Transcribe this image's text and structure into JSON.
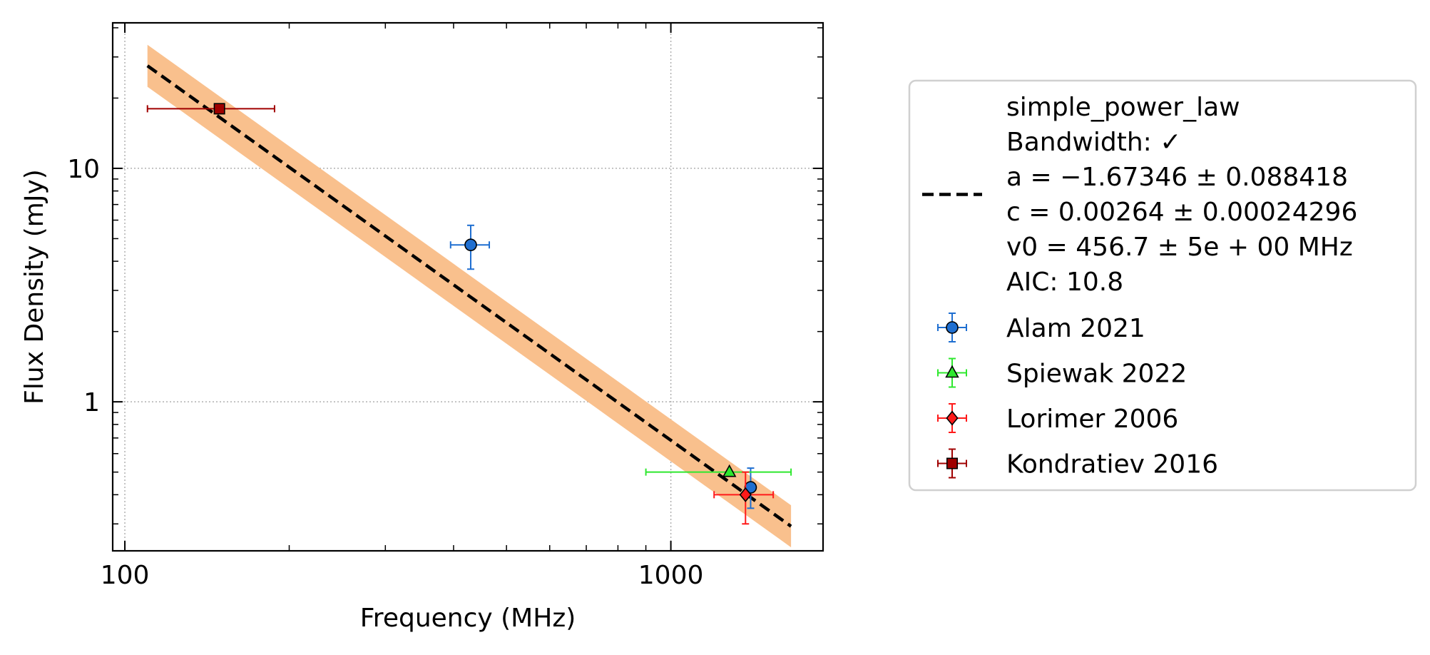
{
  "chart_data": {
    "type": "scatter",
    "title": "",
    "xlabel": "Frequency (MHz)",
    "ylabel": "Flux Density (mJy)",
    "xscale": "log",
    "yscale": "log",
    "xlim": [
      95,
      1900
    ],
    "ylim": [
      0.23,
      42
    ],
    "x_ticks": [
      {
        "value": 100,
        "label": "100"
      },
      {
        "value": 1000,
        "label": "1000"
      }
    ],
    "y_ticks": [
      {
        "value": 1,
        "label": "1"
      },
      {
        "value": 10,
        "label": "10"
      }
    ],
    "grid": true,
    "legend_placement": "outside-right",
    "fit": {
      "model": "simple_power_law",
      "legend_lines": [
        "simple_power_law",
        "Bandwidth: ✓",
        "a = −1.67346 ± 0.088418",
        "c = 0.00264 ± 0.00024296",
        "v0 = 456.7 ± 5e + 00 MHz",
        "AIC: 10.8"
      ],
      "a": -1.67346,
      "a_err": 0.088418,
      "v0": 456.7,
      "x_range": [
        110,
        1660
      ],
      "anchor": {
        "x": 110,
        "y": 27.5
      },
      "band_log_halfwidth": 0.09,
      "line_color": "#000000",
      "band_color": "#f9c08d"
    },
    "series": [
      {
        "name": "Alam 2021",
        "marker": "circle",
        "color": "#1f6fd1",
        "edge": "#000000",
        "err_color": "#1f6fd1",
        "points": [
          {
            "x": 430,
            "y": 4.7,
            "xerr": [
              35,
              35
            ],
            "yerr": [
              1.0,
              1.0
            ]
          },
          {
            "x": 1400,
            "y": 0.43,
            "xerr": [
              0,
              0
            ],
            "yerr": [
              0.08,
              0.09
            ]
          }
        ]
      },
      {
        "name": "Spiewak 2022",
        "marker": "triangle",
        "color": "#2ee82e",
        "edge": "#000000",
        "err_color": "#2ee82e",
        "points": [
          {
            "x": 1280,
            "y": 0.5,
            "xerr": [
              380,
              380
            ],
            "yerr": [
              0,
              0
            ]
          }
        ]
      },
      {
        "name": "Lorimer 2006",
        "marker": "diamond",
        "color": "#ff1a1a",
        "edge": "#000000",
        "err_color": "#ff1a1a",
        "points": [
          {
            "x": 1370,
            "y": 0.4,
            "xerr": [
              170,
              170
            ],
            "yerr": [
              0.1,
              0.1
            ]
          }
        ]
      },
      {
        "name": "Kondratiev 2016",
        "marker": "square",
        "color": "#a00000",
        "edge": "#000000",
        "err_color": "#a00000",
        "points": [
          {
            "x": 149,
            "y": 18,
            "xerr": [
              39,
              39
            ],
            "yerr": [
              0,
              0
            ]
          }
        ]
      }
    ]
  }
}
